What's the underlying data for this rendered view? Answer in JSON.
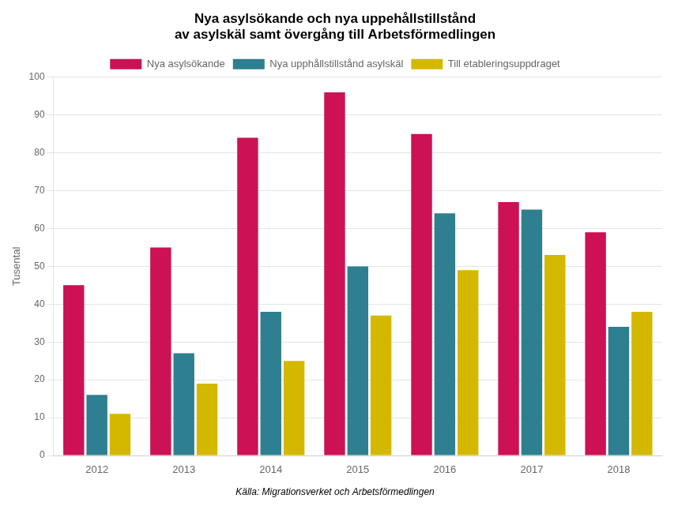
{
  "chart_data": {
    "type": "bar",
    "title": [
      "Nya asylsökande och nya uppehållstillstånd",
      "av asylskäl samt övergång till Arbetsförmedlingen"
    ],
    "categories": [
      "2012",
      "2013",
      "2014",
      "2015",
      "2016",
      "2017",
      "2018"
    ],
    "series": [
      {
        "name": "Nya asylsökande",
        "color": "#cc1155",
        "values": [
          45,
          55,
          84,
          96,
          85,
          67,
          59
        ]
      },
      {
        "name": "Nya upphållstillstånd asylskäl",
        "color": "#2e7f8f",
        "values": [
          16,
          27,
          38,
          50,
          64,
          65,
          34
        ]
      },
      {
        "name": "Till etableringsuppdraget",
        "color": "#d4b800",
        "values": [
          11,
          19,
          25,
          37,
          49,
          53,
          38
        ]
      }
    ],
    "ylabel": "Tusental",
    "ylim": [
      0,
      100
    ],
    "yticks": [
      0,
      10,
      20,
      30,
      40,
      50,
      60,
      70,
      80,
      90,
      100
    ],
    "grid": true,
    "legend": "top",
    "annotations": [
      "Källa: Migrationsverket och Arbetsförmedlingen"
    ]
  }
}
